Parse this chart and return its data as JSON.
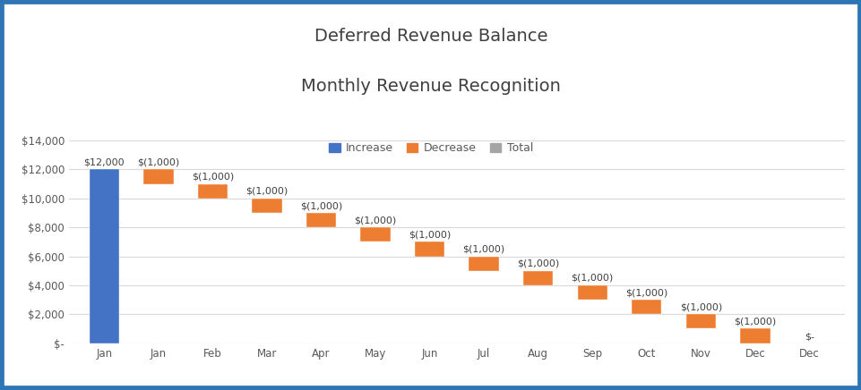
{
  "title_line1": "Deferred Revenue Balance",
  "title_line2": "Monthly Revenue Recognition",
  "categories": [
    "Jan",
    "Jan",
    "Feb",
    "Mar",
    "Apr",
    "May",
    "Jun",
    "Jul",
    "Aug",
    "Sep",
    "Oct",
    "Nov",
    "Dec",
    "Dec"
  ],
  "bar_types": [
    "increase",
    "decrease",
    "decrease",
    "decrease",
    "decrease",
    "decrease",
    "decrease",
    "decrease",
    "decrease",
    "decrease",
    "decrease",
    "decrease",
    "decrease",
    "total"
  ],
  "bar_values": [
    12000,
    1000,
    1000,
    1000,
    1000,
    1000,
    1000,
    1000,
    1000,
    1000,
    1000,
    1000,
    1000,
    0
  ],
  "bar_bases": [
    0,
    11000,
    10000,
    9000,
    8000,
    7000,
    6000,
    5000,
    4000,
    3000,
    2000,
    1000,
    0,
    0
  ],
  "bar_labels": [
    "$12,000",
    "$(1,000)",
    "$(1,000)",
    "$(1,000)",
    "$(1,000)",
    "$(1,000)",
    "$(1,000)",
    "$(1,000)",
    "$(1,000)",
    "$(1,000)",
    "$(1,000)",
    "$(1,000)",
    "$(1,000)",
    "$-"
  ],
  "color_increase": "#4472C4",
  "color_decrease": "#ED7D31",
  "color_total": "#A5A5A5",
  "ylim": [
    0,
    14000
  ],
  "yticks": [
    0,
    2000,
    4000,
    6000,
    8000,
    10000,
    12000,
    14000
  ],
  "ytick_labels": [
    "$-",
    "$2,000",
    "$4,000",
    "$6,000",
    "$8,000",
    "$10,000",
    "$12,000",
    "$14,000"
  ],
  "background_color": "#FFFFFF",
  "border_color": "#2E75B6",
  "title_fontsize": 14,
  "label_fontsize": 8,
  "tick_fontsize": 8.5,
  "legend_fontsize": 9,
  "bar_width": 0.55
}
